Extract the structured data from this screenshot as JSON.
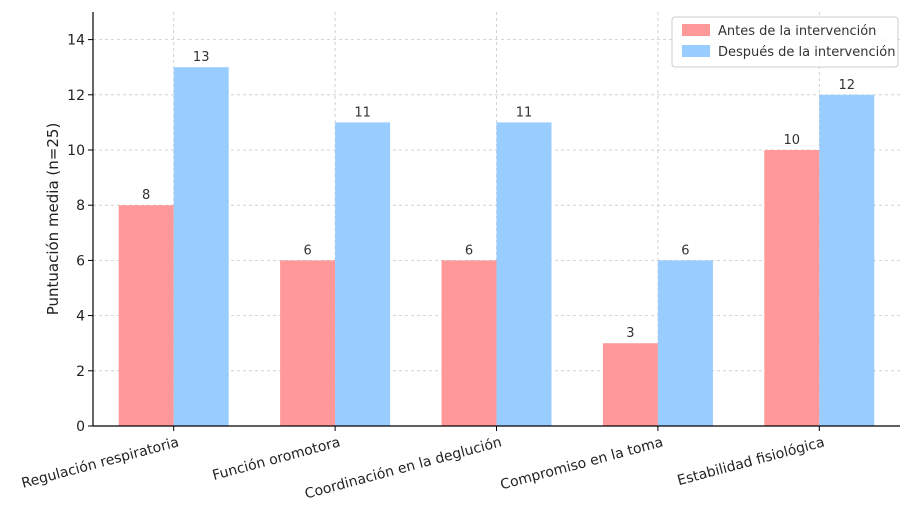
{
  "chart_data": {
    "type": "bar",
    "title": "",
    "xlabel": "",
    "ylabel": "Puntuación media (n=25)",
    "ylim": [
      0,
      15
    ],
    "yticks": [
      0,
      2,
      4,
      6,
      8,
      10,
      12,
      14
    ],
    "grid": true,
    "legend_position": "top-right",
    "categories": [
      "Regulación respiratoria",
      "Función oromotora",
      "Coordinación en la deglución",
      "Compromiso en la toma",
      "Estabilidad fisiológica"
    ],
    "series": [
      {
        "name": "Antes de la intervención",
        "color": "#ff9999",
        "values": [
          8,
          6,
          6,
          3,
          10
        ]
      },
      {
        "name": "Después de la intervención",
        "color": "#99ccff",
        "values": [
          13,
          11,
          11,
          6,
          12
        ]
      }
    ]
  }
}
